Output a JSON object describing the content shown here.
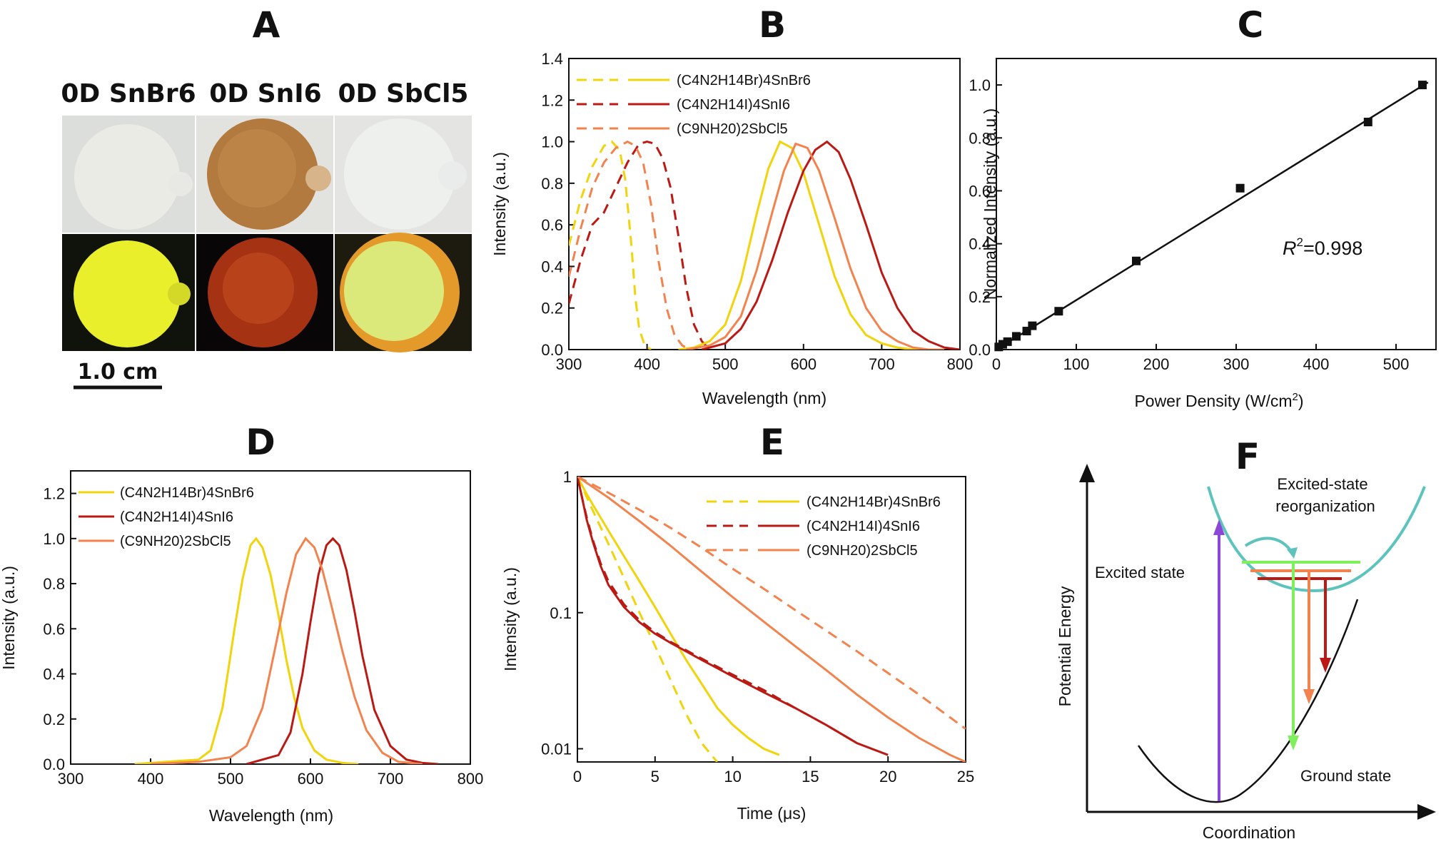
{
  "panel_labels": [
    "A",
    "B",
    "C",
    "D",
    "E",
    "F"
  ],
  "colors": {
    "yellow": "#f0d40c",
    "darkred": "#bb1a14",
    "orange": "#f2834e",
    "black": "#111111",
    "teal": "#5cc4bd",
    "green": "#7ef05c",
    "violet": "#8a47d8"
  },
  "panel_a": {
    "titles": [
      "0D SnBr6",
      "0D SnI6",
      "0D SbCl5"
    ],
    "scale_bar": "1.0 cm"
  },
  "chart_data": [
    {
      "panel": "B",
      "type": "line",
      "xlabel": "Wavelength (nm)",
      "ylabel": "Intensity (a.u.)",
      "xlim": [
        300,
        800
      ],
      "ylim": [
        0,
        1.4
      ],
      "xticks": [
        "300",
        "400",
        "500",
        "600",
        "700",
        "800"
      ],
      "yticks": [
        "0.0",
        "0.2",
        "0.4",
        "0.6",
        "0.8",
        "1.0",
        "1.2",
        "1.4"
      ],
      "legend_position": "top-left",
      "legend": [
        "(C4N2H14Br)4SnBr6",
        "(C4N2H14I)4SnI6",
        "(C9NH20)2SbCl5"
      ],
      "series": [
        {
          "style": "dashed",
          "color": "yellow",
          "x": [
            300,
            315,
            330,
            345,
            355,
            365,
            372,
            380,
            385,
            390,
            397,
            405
          ],
          "y": [
            0.5,
            0.72,
            0.88,
            0.98,
            1.0,
            0.96,
            0.82,
            0.5,
            0.25,
            0.1,
            0.02,
            0.0
          ]
        },
        {
          "style": "dashed",
          "color": "darkred",
          "x": [
            300,
            315,
            330,
            345,
            360,
            375,
            390,
            400,
            410,
            420,
            430,
            440,
            450,
            460,
            470,
            480
          ],
          "y": [
            0.22,
            0.43,
            0.6,
            0.66,
            0.78,
            0.9,
            0.99,
            1.0,
            0.99,
            0.92,
            0.78,
            0.55,
            0.3,
            0.12,
            0.04,
            0.0
          ]
        },
        {
          "style": "dashed",
          "color": "orange",
          "x": [
            300,
            315,
            330,
            345,
            360,
            375,
            385,
            395,
            405,
            415,
            425,
            435,
            445,
            455
          ],
          "y": [
            0.35,
            0.58,
            0.78,
            0.9,
            0.97,
            1.0,
            0.98,
            0.9,
            0.7,
            0.42,
            0.2,
            0.07,
            0.02,
            0.0
          ]
        },
        {
          "style": "solid",
          "color": "yellow",
          "x": [
            440,
            460,
            480,
            500,
            520,
            540,
            555,
            570,
            585,
            600,
            620,
            640,
            660,
            680,
            700,
            720,
            740,
            760
          ],
          "y": [
            0.0,
            0.01,
            0.04,
            0.12,
            0.33,
            0.65,
            0.87,
            1.0,
            0.97,
            0.85,
            0.6,
            0.35,
            0.17,
            0.07,
            0.03,
            0.01,
            0.0,
            0.0
          ]
        },
        {
          "style": "solid",
          "color": "darkred",
          "x": [
            470,
            500,
            520,
            540,
            560,
            580,
            600,
            615,
            630,
            645,
            660,
            680,
            700,
            720,
            740,
            760,
            780,
            800
          ],
          "y": [
            0.0,
            0.03,
            0.1,
            0.23,
            0.43,
            0.66,
            0.86,
            0.96,
            1.0,
            0.95,
            0.82,
            0.6,
            0.37,
            0.2,
            0.09,
            0.04,
            0.01,
            0.0
          ]
        },
        {
          "style": "solid",
          "color": "orange",
          "x": [
            450,
            480,
            500,
            520,
            540,
            560,
            575,
            590,
            605,
            620,
            640,
            660,
            680,
            700,
            720,
            740,
            760,
            780
          ],
          "y": [
            0.0,
            0.02,
            0.06,
            0.16,
            0.38,
            0.66,
            0.86,
            0.99,
            0.97,
            0.86,
            0.63,
            0.39,
            0.2,
            0.09,
            0.04,
            0.01,
            0.0,
            0.0
          ]
        }
      ]
    },
    {
      "panel": "C",
      "type": "scatter",
      "xlabel": "Power Density (W/cm²)",
      "ylabel": "Normalized Intensity (a.u.)",
      "xlim": [
        0,
        550
      ],
      "ylim": [
        0,
        1.1
      ],
      "xticks": [
        "0",
        "100",
        "200",
        "300",
        "400",
        "500"
      ],
      "yticks": [
        "0.0",
        "0.2",
        "0.4",
        "0.6",
        "0.8",
        "1.0"
      ],
      "annotation": "R²=0.998",
      "points": {
        "x": [
          3,
          8,
          14,
          25,
          38,
          45,
          78,
          175,
          305,
          465,
          533
        ],
        "y": [
          0.01,
          0.02,
          0.03,
          0.05,
          0.07,
          0.09,
          0.145,
          0.335,
          0.61,
          0.86,
          1.0
        ]
      },
      "fit_line": {
        "x": [
          0,
          540
        ],
        "y": [
          0.0,
          1.01
        ]
      }
    },
    {
      "panel": "D",
      "type": "line",
      "xlabel": "Wavelength (nm)",
      "ylabel": "Intensity (a.u.)",
      "xlim": [
        300,
        800
      ],
      "ylim": [
        0,
        1.3
      ],
      "xticks": [
        "300",
        "400",
        "500",
        "600",
        "700",
        "800"
      ],
      "yticks": [
        "0.0",
        "0.2",
        "0.4",
        "0.6",
        "0.8",
        "1.0",
        "1.2"
      ],
      "legend_position": "top-left",
      "legend": [
        "(C4N2H14Br)4SnBr6",
        "(C4N2H14I)4SnI6",
        "(C9NH20)2SbCl5"
      ],
      "series": [
        {
          "color": "yellow",
          "x": [
            380,
            420,
            460,
            475,
            490,
            505,
            515,
            525,
            532,
            540,
            550,
            560,
            570,
            580,
            590,
            605,
            620,
            640,
            660
          ],
          "y": [
            0.0,
            0.01,
            0.02,
            0.06,
            0.25,
            0.6,
            0.82,
            0.97,
            1.0,
            0.96,
            0.84,
            0.66,
            0.46,
            0.29,
            0.16,
            0.06,
            0.02,
            0.005,
            0.0
          ]
        },
        {
          "color": "darkred",
          "x": [
            520,
            560,
            575,
            590,
            600,
            610,
            620,
            628,
            636,
            645,
            655,
            665,
            680,
            700,
            720,
            740,
            760
          ],
          "y": [
            0.0,
            0.04,
            0.14,
            0.4,
            0.63,
            0.84,
            0.97,
            1.0,
            0.97,
            0.86,
            0.68,
            0.48,
            0.24,
            0.08,
            0.02,
            0.005,
            0.0
          ]
        },
        {
          "color": "orange",
          "x": [
            400,
            460,
            500,
            520,
            540,
            555,
            570,
            582,
            594,
            605,
            615,
            625,
            640,
            655,
            670,
            690,
            710,
            740
          ],
          "y": [
            0.0,
            0.01,
            0.03,
            0.08,
            0.25,
            0.5,
            0.76,
            0.93,
            1.0,
            0.96,
            0.86,
            0.72,
            0.5,
            0.3,
            0.15,
            0.05,
            0.01,
            0.0
          ]
        }
      ]
    },
    {
      "panel": "E",
      "type": "line",
      "yscale": "log",
      "xlabel": "Time (μs)",
      "ylabel": "Intensity (a.u.)",
      "xlim": [
        0,
        25
      ],
      "ylim": [
        0.008,
        1.0
      ],
      "xticks": [
        "0",
        "5",
        "10",
        "15",
        "20",
        "25"
      ],
      "yticks": [
        "1",
        "0.1",
        "0.01"
      ],
      "legend_position": "top-right",
      "legend": [
        "(C4N2H14Br)4SnBr6",
        "(C4N2H14I)4SnI6",
        "(C9NH20)2SbCl5"
      ],
      "series": [
        {
          "style": "solid",
          "color": "yellow",
          "x": [
            0,
            0.5,
            1,
            2,
            3,
            4,
            5,
            6,
            7,
            8,
            9,
            10,
            11,
            12,
            13
          ],
          "y": [
            1.0,
            0.78,
            0.62,
            0.4,
            0.26,
            0.17,
            0.11,
            0.07,
            0.045,
            0.03,
            0.02,
            0.015,
            0.012,
            0.01,
            0.009
          ]
        },
        {
          "style": "dashed",
          "color": "yellow",
          "x": [
            0,
            1,
            2,
            3,
            4,
            5,
            6,
            7,
            8,
            9
          ],
          "y": [
            1.0,
            0.56,
            0.32,
            0.18,
            0.1,
            0.057,
            0.032,
            0.018,
            0.011,
            0.008
          ]
        },
        {
          "style": "solid",
          "color": "darkred",
          "x": [
            0,
            0.3,
            0.6,
            1,
            1.5,
            2,
            3,
            4,
            5,
            6,
            8,
            10,
            12,
            14,
            16,
            18,
            20
          ],
          "y": [
            1.0,
            0.7,
            0.48,
            0.33,
            0.22,
            0.16,
            0.11,
            0.085,
            0.07,
            0.06,
            0.045,
            0.034,
            0.026,
            0.02,
            0.015,
            0.011,
            0.009
          ]
        },
        {
          "style": "dashed",
          "color": "darkred",
          "x": [
            0,
            0.3,
            0.6,
            1,
            1.5,
            2,
            3,
            4,
            5,
            6,
            8,
            10,
            12,
            14,
            16,
            18
          ],
          "y": [
            1.0,
            0.7,
            0.5,
            0.34,
            0.23,
            0.17,
            0.115,
            0.088,
            0.072,
            0.061,
            0.046,
            0.035,
            0.027,
            0.02,
            0.015,
            0.011
          ]
        },
        {
          "style": "solid",
          "color": "orange",
          "x": [
            0,
            2,
            4,
            6,
            8,
            10,
            12,
            14,
            16,
            18,
            20,
            22,
            24,
            25
          ],
          "y": [
            1.0,
            0.7,
            0.47,
            0.31,
            0.2,
            0.13,
            0.086,
            0.057,
            0.038,
            0.025,
            0.017,
            0.012,
            0.009,
            0.008
          ]
        },
        {
          "style": "dashed",
          "color": "orange",
          "x": [
            0,
            2,
            4,
            6,
            8,
            10,
            12,
            14,
            16,
            18,
            20,
            22,
            24,
            25
          ],
          "y": [
            1.0,
            0.76,
            0.57,
            0.42,
            0.3,
            0.21,
            0.15,
            0.105,
            0.074,
            0.052,
            0.036,
            0.025,
            0.017,
            0.014
          ]
        }
      ]
    }
  ],
  "panel_f": {
    "yaxis": "Potential Energy",
    "xaxis": "Coordination",
    "excited_label": "Excited state",
    "ground_label": "Ground state",
    "reorg_line1": "Excited-state",
    "reorg_line2": "reorganization"
  }
}
